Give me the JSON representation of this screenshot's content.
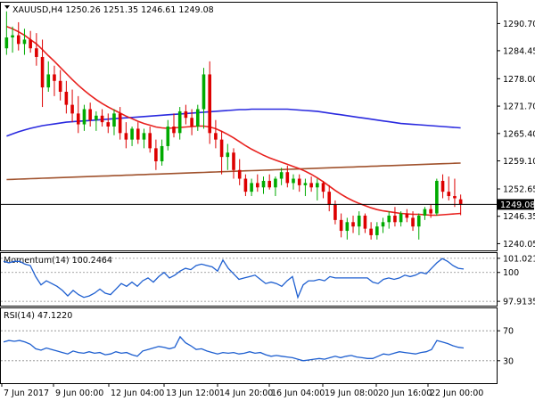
{
  "chart_data": [
    {
      "type": "candlestick",
      "panel": "price",
      "symbol": "XAUUSD",
      "timeframe": "H4",
      "header": "XAUUSD,H4  1250.26 1251.35 1246.61 1249.08",
      "ohlc_last": {
        "open": 1250.26,
        "high": 1251.35,
        "low": 1246.61,
        "close": 1249.08
      },
      "current_price_label": "1249.08",
      "ylim": [
        1238.5,
        1295.5
      ],
      "yticks": [
        "1290.70",
        "1284.45",
        "1278.00",
        "1271.70",
        "1265.40",
        "1259.10",
        "1252.65",
        "1246.35",
        "1240.05"
      ],
      "ytick_values": [
        1290.7,
        1284.45,
        1278.0,
        1271.7,
        1265.4,
        1259.1,
        1252.65,
        1246.35,
        1240.05
      ],
      "colors": {
        "bull": "#00aa00",
        "bear": "#dd0000",
        "fast_ma": "#e8211e",
        "mid_ma": "#2a2adf",
        "slow_ma": "#a0522d"
      },
      "candles": [
        {
          "o": 1285.0,
          "h": 1293.5,
          "l": 1283.5,
          "c": 1287.5
        },
        {
          "o": 1287.5,
          "h": 1290.0,
          "l": 1284.0,
          "c": 1288.0
        },
        {
          "o": 1288.0,
          "h": 1291.0,
          "l": 1284.5,
          "c": 1286.0
        },
        {
          "o": 1286.0,
          "h": 1289.5,
          "l": 1283.5,
          "c": 1287.0
        },
        {
          "o": 1287.0,
          "h": 1289.0,
          "l": 1284.0,
          "c": 1285.0
        },
        {
          "o": 1285.0,
          "h": 1288.5,
          "l": 1281.0,
          "c": 1283.0
        },
        {
          "o": 1283.0,
          "h": 1287.0,
          "l": 1271.5,
          "c": 1276.0
        },
        {
          "o": 1276.0,
          "h": 1282.0,
          "l": 1275.0,
          "c": 1279.0
        },
        {
          "o": 1279.0,
          "h": 1281.0,
          "l": 1274.0,
          "c": 1277.5
        },
        {
          "o": 1277.5,
          "h": 1280.0,
          "l": 1273.0,
          "c": 1275.0
        },
        {
          "o": 1275.0,
          "h": 1277.5,
          "l": 1270.0,
          "c": 1272.0
        },
        {
          "o": 1272.0,
          "h": 1275.5,
          "l": 1268.0,
          "c": 1270.0
        },
        {
          "o": 1270.0,
          "h": 1274.0,
          "l": 1265.5,
          "c": 1267.5
        },
        {
          "o": 1267.5,
          "h": 1272.0,
          "l": 1266.0,
          "c": 1271.0
        },
        {
          "o": 1271.0,
          "h": 1272.5,
          "l": 1267.0,
          "c": 1268.5
        },
        {
          "o": 1268.5,
          "h": 1270.5,
          "l": 1266.0,
          "c": 1269.5
        },
        {
          "o": 1269.5,
          "h": 1271.0,
          "l": 1267.0,
          "c": 1268.0
        },
        {
          "o": 1268.0,
          "h": 1270.0,
          "l": 1265.5,
          "c": 1267.0
        },
        {
          "o": 1267.0,
          "h": 1271.0,
          "l": 1265.0,
          "c": 1270.0
        },
        {
          "o": 1270.0,
          "h": 1271.5,
          "l": 1264.0,
          "c": 1265.5
        },
        {
          "o": 1265.5,
          "h": 1268.0,
          "l": 1262.0,
          "c": 1264.0
        },
        {
          "o": 1264.0,
          "h": 1267.0,
          "l": 1262.5,
          "c": 1266.5
        },
        {
          "o": 1266.5,
          "h": 1268.0,
          "l": 1263.0,
          "c": 1264.0
        },
        {
          "o": 1264.0,
          "h": 1266.5,
          "l": 1262.0,
          "c": 1265.5
        },
        {
          "o": 1265.5,
          "h": 1267.0,
          "l": 1261.0,
          "c": 1262.0
        },
        {
          "o": 1262.0,
          "h": 1264.0,
          "l": 1257.0,
          "c": 1259.0
        },
        {
          "o": 1259.0,
          "h": 1264.0,
          "l": 1258.0,
          "c": 1262.5
        },
        {
          "o": 1262.5,
          "h": 1268.5,
          "l": 1261.5,
          "c": 1267.0
        },
        {
          "o": 1267.0,
          "h": 1270.0,
          "l": 1264.5,
          "c": 1265.5
        },
        {
          "o": 1265.5,
          "h": 1271.5,
          "l": 1264.0,
          "c": 1270.5
        },
        {
          "o": 1270.5,
          "h": 1272.0,
          "l": 1267.5,
          "c": 1269.0
        },
        {
          "o": 1269.0,
          "h": 1271.0,
          "l": 1265.0,
          "c": 1267.0
        },
        {
          "o": 1267.0,
          "h": 1272.0,
          "l": 1266.0,
          "c": 1271.0
        },
        {
          "o": 1271.0,
          "h": 1280.5,
          "l": 1266.5,
          "c": 1279.0
        },
        {
          "o": 1279.0,
          "h": 1282.0,
          "l": 1263.0,
          "c": 1265.5
        },
        {
          "o": 1265.5,
          "h": 1268.5,
          "l": 1262.0,
          "c": 1264.0
        },
        {
          "o": 1264.0,
          "h": 1266.0,
          "l": 1256.0,
          "c": 1260.0
        },
        {
          "o": 1260.0,
          "h": 1263.0,
          "l": 1257.0,
          "c": 1261.0
        },
        {
          "o": 1261.0,
          "h": 1262.0,
          "l": 1255.0,
          "c": 1257.0
        },
        {
          "o": 1257.0,
          "h": 1259.5,
          "l": 1253.5,
          "c": 1255.0
        },
        {
          "o": 1255.0,
          "h": 1256.0,
          "l": 1251.0,
          "c": 1252.0
        },
        {
          "o": 1252.0,
          "h": 1255.0,
          "l": 1251.0,
          "c": 1254.0
        },
        {
          "o": 1254.0,
          "h": 1256.0,
          "l": 1252.0,
          "c": 1253.0
        },
        {
          "o": 1253.0,
          "h": 1255.5,
          "l": 1251.5,
          "c": 1254.5
        },
        {
          "o": 1254.5,
          "h": 1256.0,
          "l": 1252.5,
          "c": 1253.0
        },
        {
          "o": 1253.0,
          "h": 1255.5,
          "l": 1251.0,
          "c": 1255.0
        },
        {
          "o": 1255.0,
          "h": 1257.5,
          "l": 1253.5,
          "c": 1256.5
        },
        {
          "o": 1256.5,
          "h": 1258.0,
          "l": 1253.0,
          "c": 1254.0
        },
        {
          "o": 1254.0,
          "h": 1256.0,
          "l": 1252.5,
          "c": 1255.0
        },
        {
          "o": 1255.0,
          "h": 1256.0,
          "l": 1252.0,
          "c": 1253.5
        },
        {
          "o": 1253.5,
          "h": 1255.0,
          "l": 1251.0,
          "c": 1254.0
        },
        {
          "o": 1254.0,
          "h": 1255.5,
          "l": 1252.0,
          "c": 1253.0
        },
        {
          "o": 1253.0,
          "h": 1255.0,
          "l": 1250.0,
          "c": 1254.0
        },
        {
          "o": 1254.0,
          "h": 1254.5,
          "l": 1250.5,
          "c": 1252.0
        },
        {
          "o": 1252.0,
          "h": 1253.5,
          "l": 1247.5,
          "c": 1249.0
        },
        {
          "o": 1249.0,
          "h": 1250.0,
          "l": 1244.5,
          "c": 1245.5
        },
        {
          "o": 1245.5,
          "h": 1247.0,
          "l": 1241.5,
          "c": 1243.0
        },
        {
          "o": 1243.0,
          "h": 1246.0,
          "l": 1241.0,
          "c": 1245.0
        },
        {
          "o": 1245.0,
          "h": 1246.5,
          "l": 1242.5,
          "c": 1244.0
        },
        {
          "o": 1244.0,
          "h": 1247.5,
          "l": 1242.0,
          "c": 1246.5
        },
        {
          "o": 1246.5,
          "h": 1247.0,
          "l": 1242.5,
          "c": 1243.5
        },
        {
          "o": 1243.5,
          "h": 1245.0,
          "l": 1241.0,
          "c": 1242.0
        },
        {
          "o": 1242.0,
          "h": 1245.0,
          "l": 1241.0,
          "c": 1244.0
        },
        {
          "o": 1244.0,
          "h": 1246.0,
          "l": 1242.5,
          "c": 1245.0
        },
        {
          "o": 1245.0,
          "h": 1247.5,
          "l": 1243.5,
          "c": 1246.5
        },
        {
          "o": 1246.5,
          "h": 1248.5,
          "l": 1244.0,
          "c": 1245.0
        },
        {
          "o": 1245.0,
          "h": 1247.5,
          "l": 1244.0,
          "c": 1247.0
        },
        {
          "o": 1247.0,
          "h": 1248.0,
          "l": 1245.0,
          "c": 1246.0
        },
        {
          "o": 1246.0,
          "h": 1247.5,
          "l": 1243.0,
          "c": 1244.0
        },
        {
          "o": 1244.0,
          "h": 1247.0,
          "l": 1241.0,
          "c": 1246.5
        },
        {
          "o": 1246.5,
          "h": 1248.5,
          "l": 1245.5,
          "c": 1248.0
        },
        {
          "o": 1248.0,
          "h": 1249.0,
          "l": 1246.0,
          "c": 1247.0
        },
        {
          "o": 1247.0,
          "h": 1255.0,
          "l": 1246.5,
          "c": 1254.5
        },
        {
          "o": 1254.5,
          "h": 1256.0,
          "l": 1250.5,
          "c": 1252.0
        },
        {
          "o": 1252.0,
          "h": 1255.5,
          "l": 1250.0,
          "c": 1251.0
        },
        {
          "o": 1251.0,
          "h": 1255.0,
          "l": 1248.5,
          "c": 1250.5
        },
        {
          "o": 1250.26,
          "h": 1251.35,
          "l": 1246.61,
          "c": 1249.08
        }
      ],
      "fast_ma": [
        1290.0,
        1289.5,
        1288.8,
        1288.0,
        1287.0,
        1286.0,
        1284.7,
        1283.3,
        1282.0,
        1280.6,
        1279.2,
        1277.8,
        1276.5,
        1275.3,
        1274.2,
        1273.2,
        1272.3,
        1271.5,
        1270.8,
        1270.1,
        1269.4,
        1268.8,
        1268.2,
        1267.7,
        1267.3,
        1266.9,
        1266.7,
        1266.6,
        1266.7,
        1266.8,
        1266.9,
        1267.0,
        1267.1,
        1267.1,
        1266.9,
        1266.5,
        1265.9,
        1265.2,
        1264.4,
        1263.5,
        1262.6,
        1261.8,
        1261.1,
        1260.4,
        1259.8,
        1259.3,
        1258.8,
        1258.3,
        1257.8,
        1257.3,
        1256.7,
        1256.0,
        1255.2,
        1254.3,
        1253.3,
        1252.3,
        1251.4,
        1250.6,
        1249.9,
        1249.3,
        1248.8,
        1248.3,
        1247.9,
        1247.6,
        1247.4,
        1247.2,
        1247.0,
        1246.9,
        1246.8,
        1246.8,
        1246.7,
        1246.6,
        1246.6,
        1246.7,
        1246.8,
        1246.9,
        1247.0
      ],
      "mid_ma": [
        1264.8,
        1265.3,
        1265.8,
        1266.2,
        1266.6,
        1266.9,
        1267.2,
        1267.4,
        1267.6,
        1267.8,
        1268.0,
        1268.1,
        1268.2,
        1268.3,
        1268.4,
        1268.5,
        1268.6,
        1268.7,
        1268.8,
        1268.9,
        1269.0,
        1269.1,
        1269.2,
        1269.3,
        1269.4,
        1269.5,
        1269.6,
        1269.7,
        1269.8,
        1269.9,
        1270.0,
        1270.1,
        1270.2,
        1270.3,
        1270.4,
        1270.5,
        1270.6,
        1270.7,
        1270.8,
        1270.9,
        1270.9,
        1271.0,
        1271.0,
        1271.0,
        1271.0,
        1271.0,
        1271.0,
        1271.0,
        1270.9,
        1270.8,
        1270.7,
        1270.6,
        1270.5,
        1270.3,
        1270.1,
        1269.9,
        1269.7,
        1269.5,
        1269.3,
        1269.1,
        1268.9,
        1268.7,
        1268.5,
        1268.3,
        1268.1,
        1267.9,
        1267.7,
        1267.6,
        1267.5,
        1267.4,
        1267.3,
        1267.2,
        1267.1,
        1267.0,
        1266.9,
        1266.8,
        1266.7
      ],
      "slow_ma": [
        1254.8,
        1254.85,
        1254.9,
        1254.95,
        1255.0,
        1255.05,
        1255.1,
        1255.15,
        1255.2,
        1255.25,
        1255.3,
        1255.35,
        1255.4,
        1255.45,
        1255.5,
        1255.55,
        1255.6,
        1255.65,
        1255.7,
        1255.75,
        1255.8,
        1255.85,
        1255.9,
        1255.95,
        1256.0,
        1256.05,
        1256.1,
        1256.15,
        1256.2,
        1256.25,
        1256.3,
        1256.35,
        1256.4,
        1256.45,
        1256.5,
        1256.55,
        1256.6,
        1256.65,
        1256.7,
        1256.75,
        1256.8,
        1256.85,
        1256.9,
        1256.95,
        1257.0,
        1257.05,
        1257.1,
        1257.15,
        1257.2,
        1257.25,
        1257.3,
        1257.35,
        1257.4,
        1257.45,
        1257.5,
        1257.55,
        1257.6,
        1257.65,
        1257.7,
        1257.75,
        1257.8,
        1257.85,
        1257.9,
        1257.95,
        1258.0,
        1258.05,
        1258.1,
        1258.15,
        1258.2,
        1258.25,
        1258.3,
        1258.35,
        1258.4,
        1258.45,
        1258.5,
        1258.55,
        1258.6
      ]
    },
    {
      "type": "line",
      "panel": "momentum",
      "header": "Momentum(14) 100.2464",
      "value": 100.2464,
      "ylim": [
        97.6,
        101.4
      ],
      "yticks": [
        "101.0217",
        "100",
        "97.9135"
      ],
      "ytick_values": [
        101.0217,
        100.0,
        97.9135
      ],
      "reference_level": 100,
      "color": "#1e5fd0",
      "values": [
        100.8,
        100.7,
        100.8,
        100.8,
        100.6,
        100.5,
        99.7,
        99.1,
        99.4,
        99.2,
        99.0,
        98.7,
        98.3,
        98.7,
        98.4,
        98.2,
        98.3,
        98.5,
        98.8,
        98.5,
        98.4,
        98.8,
        99.2,
        99.0,
        99.3,
        99.0,
        99.4,
        99.6,
        99.3,
        99.7,
        100.0,
        99.6,
        99.8,
        100.1,
        100.3,
        100.2,
        100.5,
        100.6,
        100.5,
        100.4,
        100.1,
        100.9,
        100.3,
        99.9,
        99.5,
        99.6,
        99.7,
        99.8,
        99.5,
        99.2,
        99.3,
        99.2,
        99.0,
        99.4,
        99.7,
        98.2,
        99.1,
        99.4,
        99.4,
        99.5,
        99.4,
        99.7,
        99.6,
        99.6,
        99.6,
        99.6,
        99.6,
        99.6,
        99.6,
        99.3,
        99.2,
        99.5,
        99.6,
        99.5,
        99.6,
        99.8,
        99.7,
        99.8,
        100.0,
        99.9,
        100.3,
        100.7,
        101.0,
        100.8,
        100.5,
        100.3,
        100.25
      ]
    },
    {
      "type": "line",
      "panel": "rsi",
      "header": "RSI(14) 47.1220",
      "value": 47.122,
      "ylim": [
        0,
        100
      ],
      "yticks": [
        "70",
        "30"
      ],
      "ytick_values": [
        70,
        30
      ],
      "color": "#1e5fd0",
      "values": [
        55,
        57,
        56,
        57,
        55,
        52,
        46,
        44,
        47,
        45,
        43,
        41,
        39,
        43,
        41,
        40,
        42,
        40,
        41,
        38,
        39,
        42,
        40,
        41,
        38,
        36,
        43,
        45,
        47,
        49,
        48,
        46,
        48,
        62,
        54,
        50,
        45,
        46,
        43,
        41,
        39,
        41,
        40,
        41,
        39,
        40,
        42,
        40,
        41,
        38,
        36,
        37,
        36,
        35,
        34,
        32,
        30,
        31,
        32,
        33,
        32,
        34,
        36,
        34,
        36,
        37,
        35,
        34,
        33,
        33,
        36,
        39,
        38,
        40,
        42,
        41,
        40,
        39,
        41,
        42,
        45,
        57,
        55,
        53,
        50,
        48,
        47
      ]
    }
  ],
  "x_labels": [
    "7 Jun 2017",
    "9 Jun 00:00",
    "12 Jun 04:00",
    "13 Jun 12:00",
    "14 Jun 20:00",
    "16 Jun 04:00",
    "19 Jun 08:00",
    "20 Jun 16:00",
    "22 Jun 00:00"
  ],
  "ui": {
    "price_header": "XAUUSD,H4  1250.26 1251.35 1246.61 1249.08",
    "momentum_header": "Momentum(14) 100.2464",
    "rsi_header": "RSI(14) 47.1220",
    "price_badge": "1249.08",
    "collapse_icon": "triangle-down-icon"
  }
}
